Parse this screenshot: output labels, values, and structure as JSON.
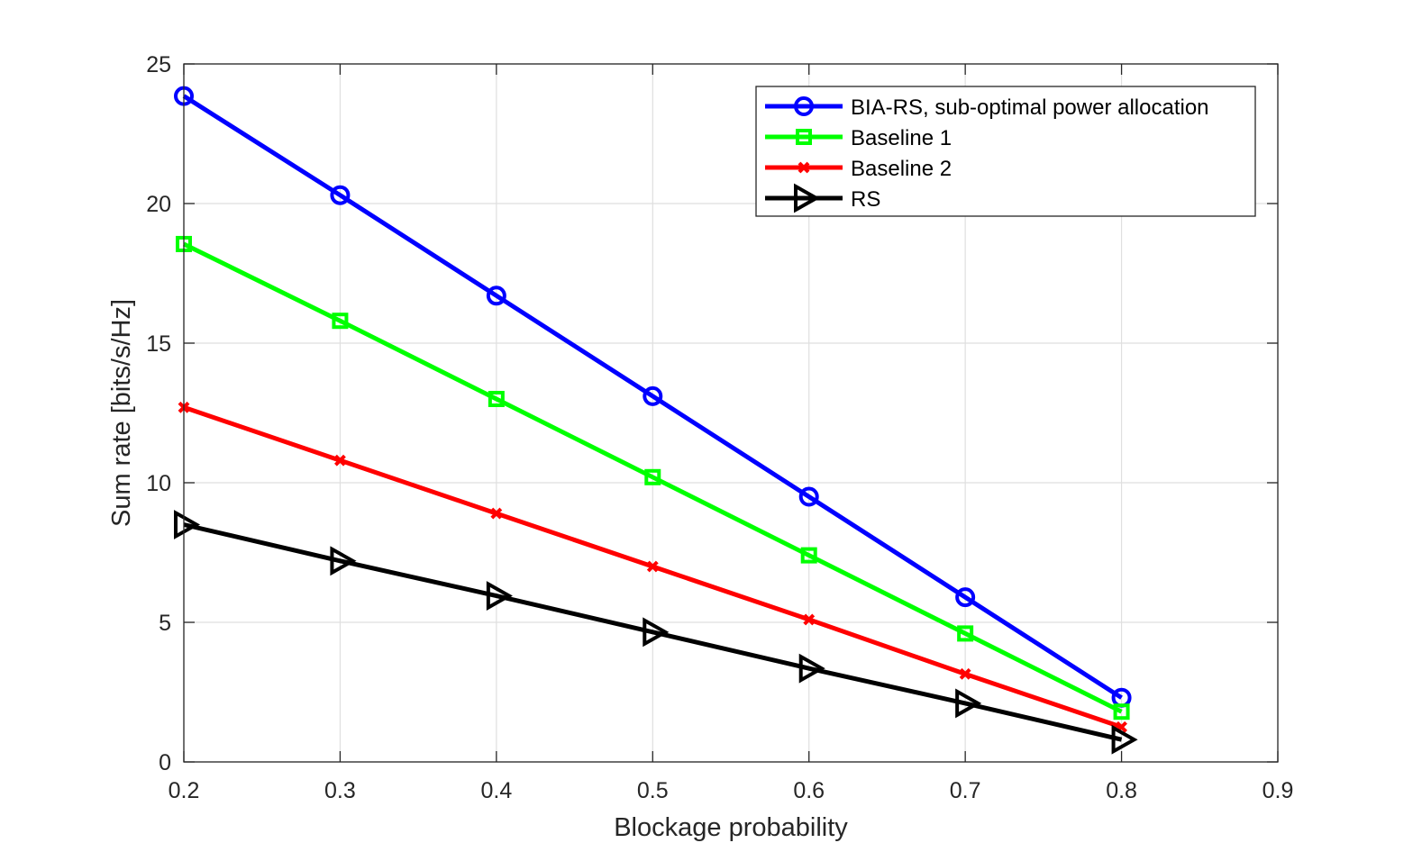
{
  "chart_data": {
    "type": "line",
    "xlabel": "Blockage probability",
    "ylabel": "Sum rate [bits/s/Hz]",
    "xlim": [
      0.2,
      0.9
    ],
    "ylim": [
      0,
      25
    ],
    "xticks": [
      "0.2",
      "0.3",
      "0.4",
      "0.5",
      "0.6",
      "0.7",
      "0.8",
      "0.9"
    ],
    "yticks": [
      "0",
      "5",
      "10",
      "15",
      "20",
      "25"
    ],
    "grid": true,
    "legend_position": "top-right",
    "x": [
      0.2,
      0.3,
      0.4,
      0.5,
      0.6,
      0.7,
      0.8
    ],
    "series": [
      {
        "name": "BIA-RS, sub-optimal power allocation",
        "color": "#0000ff",
        "marker": "circle",
        "values": [
          23.85,
          20.3,
          16.7,
          13.1,
          9.5,
          5.9,
          2.3
        ]
      },
      {
        "name": "Baseline 1",
        "color": "#00ff00",
        "marker": "square",
        "values": [
          18.55,
          15.8,
          13.0,
          10.2,
          7.4,
          4.6,
          1.8
        ]
      },
      {
        "name": "Baseline 2",
        "color": "#ff0000",
        "marker": "x",
        "values": [
          12.7,
          10.8,
          8.9,
          7.0,
          5.1,
          3.15,
          1.25
        ]
      },
      {
        "name": "RS",
        "color": "#000000",
        "marker": "triangle-right",
        "values": [
          8.5,
          7.2,
          5.95,
          4.65,
          3.35,
          2.1,
          0.8
        ]
      }
    ]
  }
}
